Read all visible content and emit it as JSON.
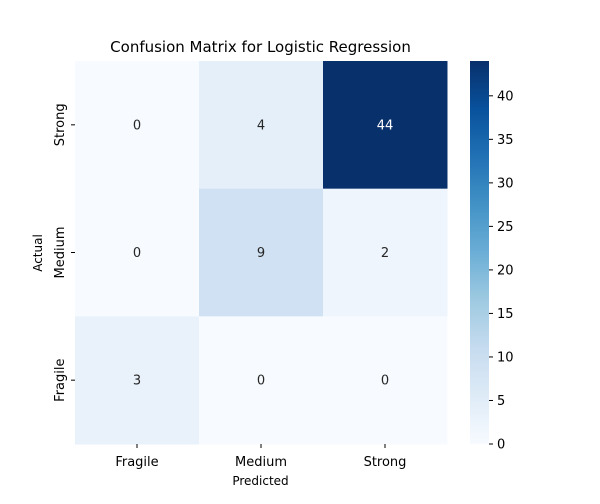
{
  "chart_data": {
    "type": "heatmap",
    "title": "Confusion Matrix for Logistic Regression",
    "xlabel": "Predicted",
    "ylabel": "Actual",
    "x_categories": [
      "Fragile",
      "Medium",
      "Strong"
    ],
    "y_categories": [
      "Strong",
      "Medium",
      "Fragile"
    ],
    "values": [
      [
        0,
        4,
        44
      ],
      [
        0,
        9,
        2
      ],
      [
        3,
        0,
        0
      ]
    ],
    "colormap": "Blues",
    "color_range": [
      0,
      44
    ],
    "colorbar_ticks": [
      0,
      5,
      10,
      15,
      20,
      25,
      30,
      35,
      40
    ],
    "colors": {
      "low": "#f7fbff",
      "high": "#08306b"
    }
  }
}
